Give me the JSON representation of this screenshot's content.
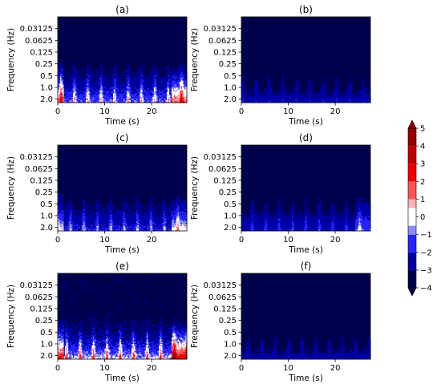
{
  "chart_data": {
    "type": "heatmap",
    "figure_kind": "wavelet scalogram grid (3 rows x 2 columns)",
    "shared": {
      "xlabel": "Time (s)",
      "ylabel": "Frequency (Hz)",
      "x_ticks": [
        0,
        10,
        20
      ],
      "x_range": [
        0,
        27.5
      ],
      "y_tick_labels": [
        "0.03125",
        "0.0625",
        "0.125",
        "0.25",
        "0.5",
        "1.0",
        "2.0"
      ],
      "y_range_log2": [
        -6,
        1.3
      ],
      "y_scale": "log2, frequency increasing downward"
    },
    "colorbar": {
      "colormap": "seismic",
      "ticks": [
        5,
        4,
        3,
        2,
        1,
        0,
        -1,
        -2,
        -3,
        -4
      ],
      "range": [
        -4,
        5
      ],
      "levels": [
        {
          "lo": -4,
          "hi": -3,
          "color": "#00004c"
        },
        {
          "lo": -3,
          "hi": -2,
          "color": "#0000a6"
        },
        {
          "lo": -2,
          "hi": -1,
          "color": "#2424ff"
        },
        {
          "lo": -1,
          "hi": -0.5,
          "color": "#8c8cff"
        },
        {
          "lo": -0.5,
          "hi": 0.5,
          "color": "#ffffff"
        },
        {
          "lo": 0.5,
          "hi": 1,
          "color": "#ffb0b0"
        },
        {
          "lo": 1,
          "hi": 2,
          "color": "#ff5454"
        },
        {
          "lo": 2,
          "hi": 3,
          "color": "#f00000"
        },
        {
          "lo": 3,
          "hi": 4,
          "color": "#c20000"
        },
        {
          "lo": 4,
          "hi": 5,
          "color": "#980000"
        }
      ],
      "extend": "both",
      "label": ""
    },
    "panels": [
      {
        "label": "(a)",
        "intensity": 1.0
      },
      {
        "label": "(b)",
        "intensity": 0.35
      },
      {
        "label": "(c)",
        "intensity": 0.7
      },
      {
        "label": "(d)",
        "intensity": 0.5
      },
      {
        "label": "(e)",
        "intensity": 1.25
      },
      {
        "label": "(f)",
        "intensity": 0.3
      }
    ]
  }
}
